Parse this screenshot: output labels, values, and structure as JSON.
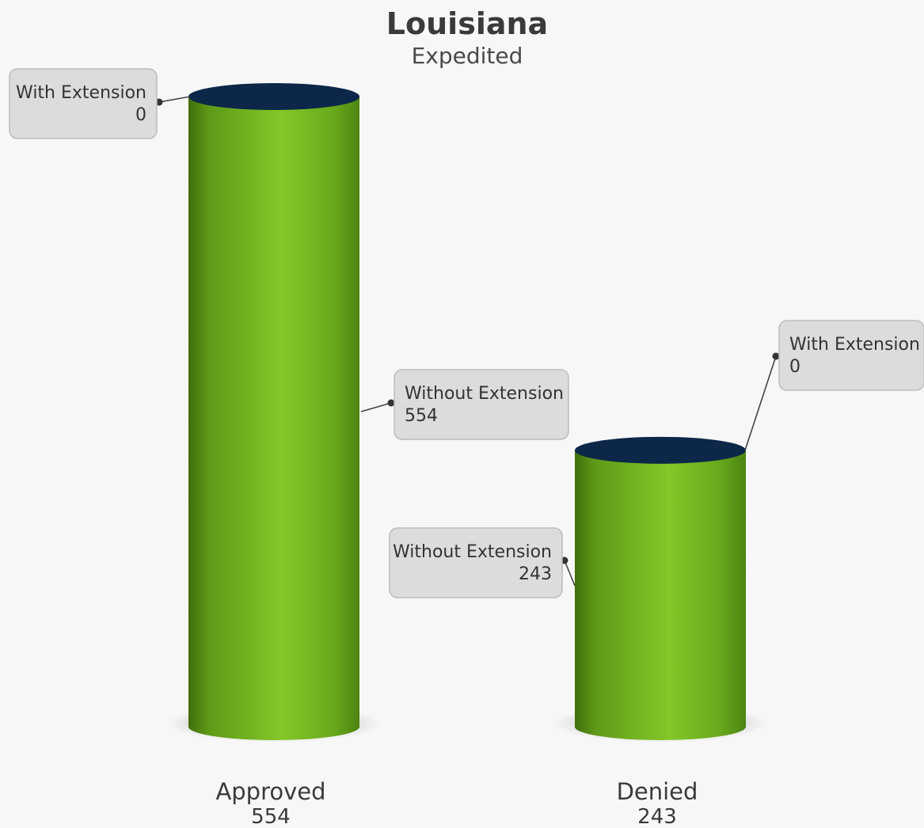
{
  "chart_data": {
    "type": "bar",
    "title": "Louisiana",
    "subtitle": "Expedited",
    "categories": [
      "Approved",
      "Denied"
    ],
    "totals": [
      "554",
      "243"
    ],
    "series": [
      {
        "name": "With Extension",
        "values": [
          0,
          0
        ]
      },
      {
        "name": "Without Extension",
        "values": [
          554,
          243
        ]
      }
    ],
    "ylim": [
      0,
      554
    ],
    "colors": {
      "bar": "#7ec322",
      "bar_dark": "#4a7d10",
      "top": "#0c2748",
      "callout_bg": "#dcdcdc",
      "callout_border": "#bcbcbc",
      "background": "#f7f7f7"
    }
  }
}
